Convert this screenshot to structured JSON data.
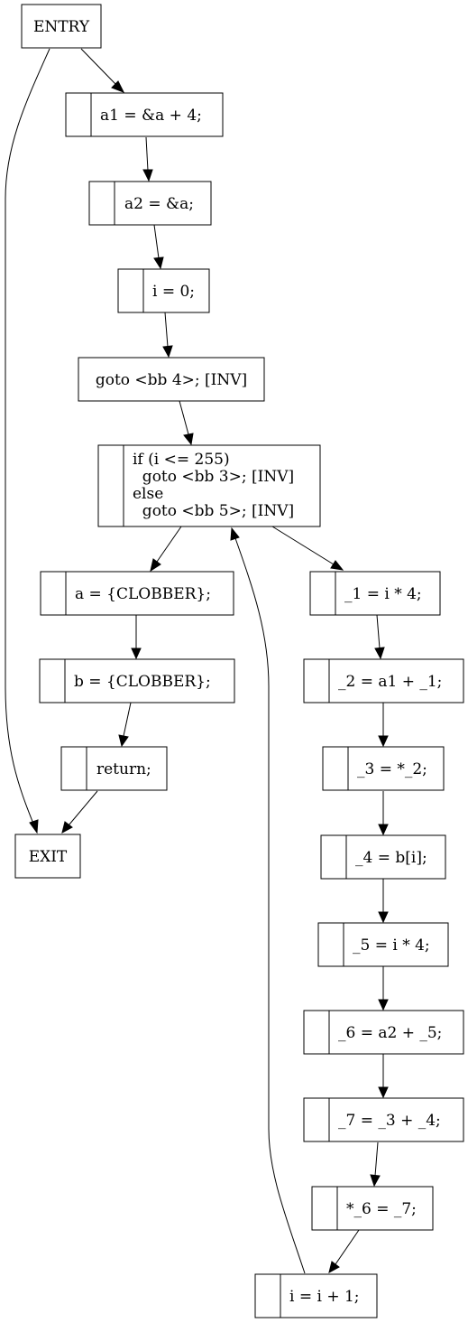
{
  "nodes": {
    "entry": "ENTRY",
    "a1_assign": "a1 = &a + 4;",
    "a2_assign": "a2 = &a;",
    "i_init": "i = 0;",
    "goto_bb4": "goto <bb 4>; [INV]",
    "cond": [
      "if (i <= 255)",
      "  goto <bb 3>; [INV]",
      "else",
      "  goto <bb 5>; [INV]"
    ],
    "a_clobber": "a = {CLOBBER};",
    "b_clobber": "b = {CLOBBER};",
    "return_stmt": "return;",
    "exit": "EXIT",
    "t1": "_1 = i * 4;",
    "t2": "_2 = a1 + _1;",
    "t3": "_3 = *_2;",
    "t4": "_4 = b[i];",
    "t5": "_5 = i * 4;",
    "t6": "_6 = a2 + _5;",
    "t7": "_7 = _3 + _4;",
    "store": "*_6 = _7;",
    "i_inc": "i = i + 1;"
  }
}
